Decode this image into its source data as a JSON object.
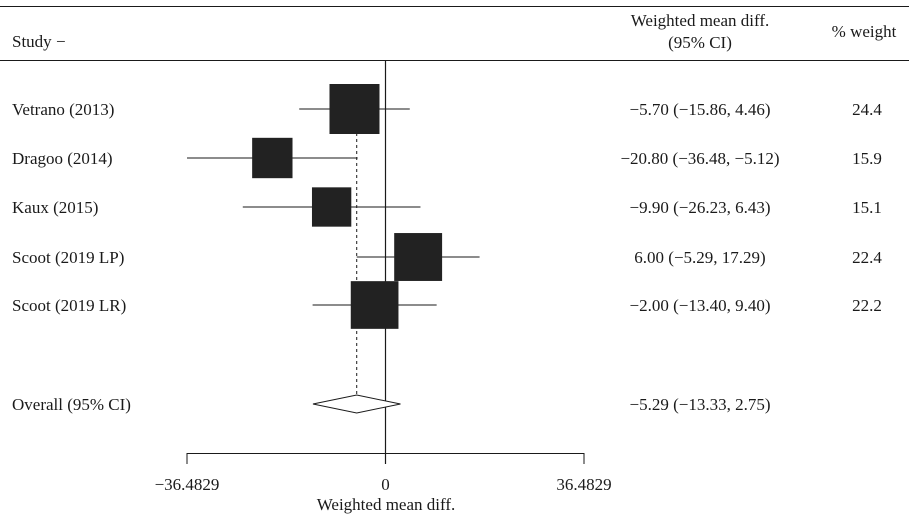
{
  "chart_data": {
    "type": "forest",
    "header": {
      "study": "Study",
      "effect_line1": "Weighted mean diff.",
      "effect_line2": "(95% CI)",
      "weight": "% weight"
    },
    "studies": [
      {
        "label": "Vetrano (2013)",
        "estimate": -5.7,
        "lower": -15.86,
        "upper": 4.46,
        "ci_text": "−5.70 (−15.86, 4.46)",
        "weight": 24.4,
        "weight_text": "24.4"
      },
      {
        "label": "Dragoo (2014)",
        "estimate": -20.8,
        "lower": -36.48,
        "upper": -5.12,
        "ci_text": "−20.80 (−36.48, −5.12)",
        "weight": 15.9,
        "weight_text": "15.9"
      },
      {
        "label": "Kaux (2015)",
        "estimate": -9.9,
        "lower": -26.23,
        "upper": 6.43,
        "ci_text": "−9.90 (−26.23, 6.43)",
        "weight": 15.1,
        "weight_text": "15.1"
      },
      {
        "label": "Scoot (2019 LP)",
        "estimate": 6.0,
        "lower": -5.29,
        "upper": 17.29,
        "ci_text": "6.00 (−5.29, 17.29)",
        "weight": 22.4,
        "weight_text": "22.4"
      },
      {
        "label": "Scoot (2019 LR)",
        "estimate": -2.0,
        "lower": -13.4,
        "upper": 9.4,
        "ci_text": "−2.00 (−13.40, 9.40)",
        "weight": 22.2,
        "weight_text": "22.2"
      }
    ],
    "overall": {
      "label": "Overall (95% CI)",
      "estimate": -5.29,
      "lower": -13.33,
      "upper": 2.75,
      "ci_text": "−5.29 (−13.33, 2.75)"
    },
    "x_axis": {
      "label": "Weighted mean diff.",
      "xlim": [
        -36.4829,
        36.4829
      ],
      "ticks": [
        -36.4829,
        0,
        36.4829
      ],
      "tick_labels": [
        "−36.4829",
        "0",
        "36.4829"
      ]
    },
    "colors": {
      "box": "#222222",
      "line": "#1a1a1a"
    }
  }
}
